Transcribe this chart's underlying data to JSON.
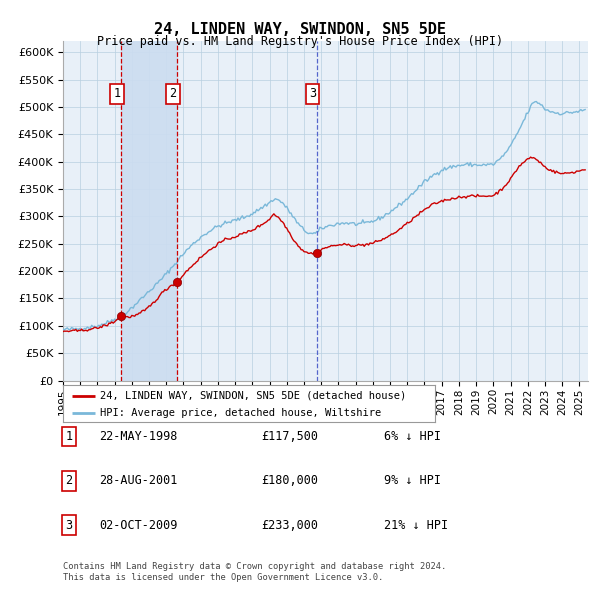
{
  "title": "24, LINDEN WAY, SWINDON, SN5 5DE",
  "subtitle": "Price paid vs. HM Land Registry's House Price Index (HPI)",
  "legend_label_red": "24, LINDEN WAY, SWINDON, SN5 5DE (detached house)",
  "legend_label_blue": "HPI: Average price, detached house, Wiltshire",
  "footer1": "Contains HM Land Registry data © Crown copyright and database right 2024.",
  "footer2": "This data is licensed under the Open Government Licence v3.0.",
  "transactions": [
    {
      "num": 1,
      "date": "22-MAY-1998",
      "price": 117500,
      "pct": "6%",
      "dir": "↓",
      "x_year": 1998.38
    },
    {
      "num": 2,
      "date": "28-AUG-2001",
      "price": 180000,
      "pct": "9%",
      "dir": "↓",
      "x_year": 2001.65
    },
    {
      "num": 3,
      "date": "02-OCT-2009",
      "price": 233000,
      "pct": "21%",
      "dir": "↓",
      "x_year": 2009.75
    }
  ],
  "hpi_color": "#7ab8d9",
  "price_color": "#cc0000",
  "bg_color": "#e8f0f8",
  "grid_color": "#b8cfe0",
  "vline_colors_red": "#cc0000",
  "vline_color_blue": "#5566cc",
  "span_color": "#ccddf0",
  "ylim": [
    0,
    620000
  ],
  "yticks": [
    0,
    50000,
    100000,
    150000,
    200000,
    250000,
    300000,
    350000,
    400000,
    450000,
    500000,
    550000,
    600000
  ],
  "xlim_start": 1995.0,
  "xlim_end": 2025.5,
  "hpi_anchors_x": [
    1995.0,
    1996.0,
    1997.0,
    1997.5,
    1998.0,
    1998.5,
    1999.0,
    1999.5,
    2000.0,
    2000.5,
    2001.0,
    2001.5,
    2002.0,
    2002.5,
    2003.0,
    2003.5,
    2004.0,
    2004.5,
    2005.0,
    2005.5,
    2006.0,
    2006.5,
    2007.0,
    2007.25,
    2007.5,
    2007.75,
    2008.0,
    2008.25,
    2008.5,
    2008.75,
    2009.0,
    2009.25,
    2009.5,
    2009.75,
    2010.0,
    2010.5,
    2011.0,
    2011.5,
    2012.0,
    2012.5,
    2013.0,
    2013.5,
    2014.0,
    2014.5,
    2015.0,
    2015.5,
    2016.0,
    2016.5,
    2017.0,
    2017.5,
    2018.0,
    2018.5,
    2019.0,
    2019.5,
    2020.0,
    2020.5,
    2021.0,
    2021.5,
    2022.0,
    2022.25,
    2022.5,
    2022.75,
    2023.0,
    2023.5,
    2024.0,
    2024.5,
    2025.0,
    2025.3
  ],
  "hpi_anchors_y": [
    93000,
    95000,
    100000,
    105000,
    112000,
    120000,
    133000,
    148000,
    163000,
    178000,
    195000,
    213000,
    232000,
    248000,
    262000,
    273000,
    282000,
    288000,
    293000,
    298000,
    305000,
    315000,
    325000,
    332000,
    330000,
    325000,
    315000,
    305000,
    293000,
    283000,
    275000,
    270000,
    268000,
    270000,
    278000,
    283000,
    287000,
    288000,
    286000,
    287000,
    291000,
    298000,
    308000,
    320000,
    332000,
    348000,
    363000,
    375000,
    385000,
    390000,
    393000,
    395000,
    394000,
    394000,
    395000,
    408000,
    428000,
    458000,
    490000,
    505000,
    510000,
    505000,
    496000,
    490000,
    488000,
    490000,
    492000,
    494000
  ],
  "price_anchors_x": [
    1995.0,
    1996.0,
    1997.0,
    1997.5,
    1998.0,
    1998.38,
    1998.75,
    1999.25,
    1999.75,
    2000.25,
    2000.75,
    2001.25,
    2001.65,
    2002.0,
    2002.5,
    2003.0,
    2003.5,
    2004.0,
    2004.5,
    2005.0,
    2005.5,
    2006.0,
    2006.5,
    2007.0,
    2007.25,
    2007.5,
    2007.75,
    2008.0,
    2008.25,
    2008.5,
    2008.75,
    2009.0,
    2009.25,
    2009.5,
    2009.75,
    2010.0,
    2010.5,
    2011.0,
    2011.5,
    2012.0,
    2012.5,
    2013.0,
    2013.5,
    2014.0,
    2014.5,
    2015.0,
    2015.5,
    2016.0,
    2016.5,
    2017.0,
    2017.5,
    2018.0,
    2018.5,
    2019.0,
    2019.5,
    2020.0,
    2020.5,
    2021.0,
    2021.5,
    2022.0,
    2022.25,
    2022.5,
    2022.75,
    2023.0,
    2023.5,
    2024.0,
    2024.5,
    2025.0,
    2025.3
  ],
  "price_anchors_y": [
    90000,
    91000,
    96000,
    101000,
    108000,
    117500,
    116000,
    119000,
    128000,
    142000,
    160000,
    173000,
    180000,
    194000,
    210000,
    225000,
    238000,
    250000,
    258000,
    263000,
    269000,
    275000,
    284000,
    295000,
    305000,
    298000,
    290000,
    278000,
    265000,
    253000,
    243000,
    237000,
    233500,
    232000,
    233000,
    240000,
    245000,
    248000,
    248000,
    247000,
    248000,
    251000,
    257000,
    265000,
    275000,
    287000,
    300000,
    312000,
    322000,
    328000,
    332000,
    335000,
    337000,
    337000,
    337000,
    338000,
    350000,
    368000,
    392000,
    405000,
    408000,
    404000,
    398000,
    390000,
    382000,
    378000,
    380000,
    383000,
    386000
  ]
}
